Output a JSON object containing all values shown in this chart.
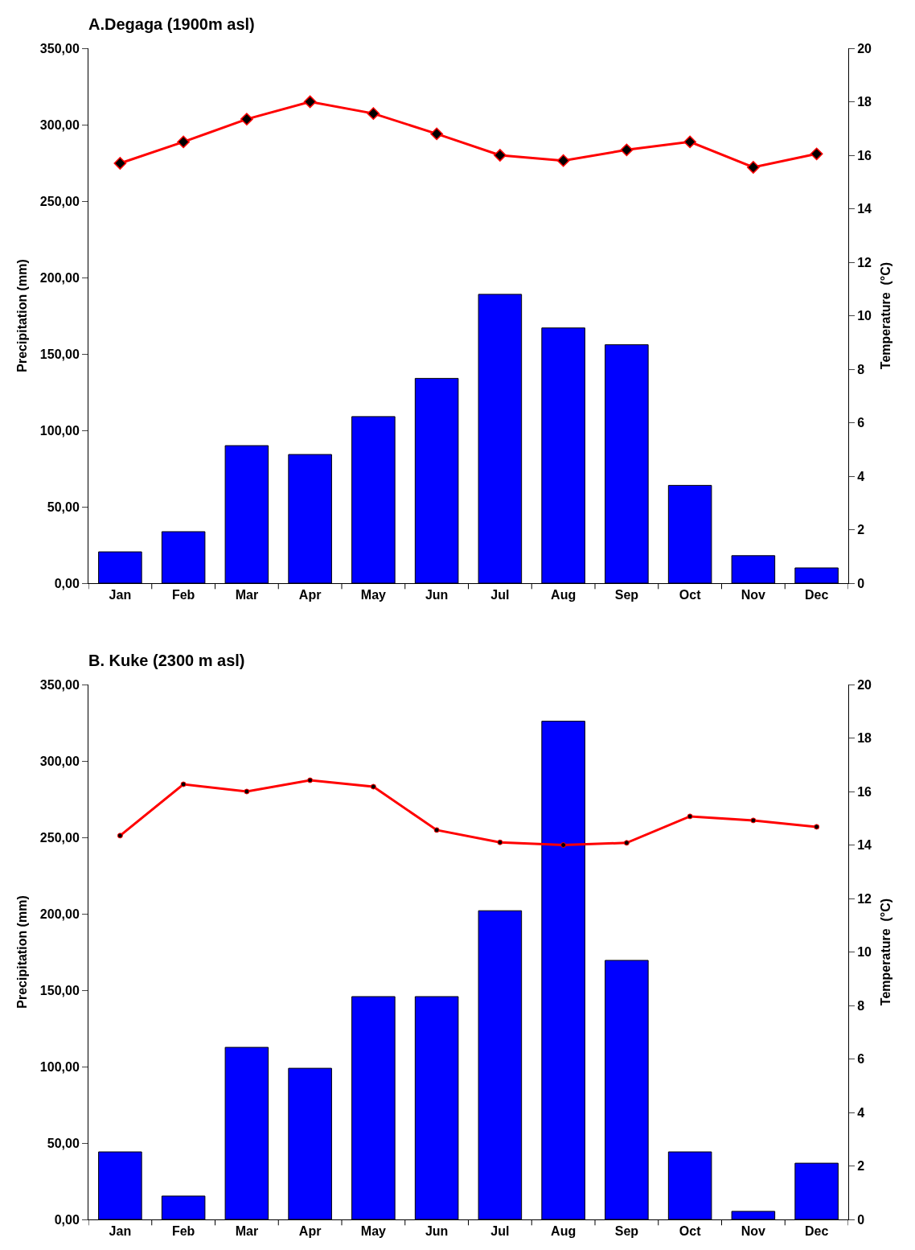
{
  "chart_data": [
    {
      "type": "bar",
      "title": "A.Degaga (1900m asl)",
      "ylabel": "Precipitation (mm)",
      "y2label": "Temperature  (°C)",
      "categories": [
        "Jan",
        "Feb",
        "Mar",
        "Apr",
        "May",
        "Jun",
        "Jul",
        "Aug",
        "Sep",
        "Oct",
        "Nov",
        "Dec"
      ],
      "series": [
        {
          "color": "#0000ff",
          "values": [
            20.5,
            33.7,
            90,
            84.2,
            109,
            134,
            189,
            167,
            156,
            64,
            18,
            10
          ]
        },
        {
          "type": "line",
          "axis": "y2",
          "color": "#ff0000",
          "marker": "diamond",
          "values": [
            15.7,
            16.5,
            17.35,
            18.0,
            17.56,
            16.8,
            16.0,
            15.8,
            16.2,
            16.5,
            15.55,
            16.05
          ]
        }
      ],
      "ylim": [
        0,
        350
      ],
      "yticks": [
        {
          "value": 0,
          "label": "0,00"
        },
        {
          "value": 50,
          "label": "50,00"
        },
        {
          "value": 100,
          "label": "100,00"
        },
        {
          "value": 150,
          "label": "150,00"
        },
        {
          "value": 200,
          "label": "200,00"
        },
        {
          "value": 250,
          "label": "250,00"
        },
        {
          "value": 300,
          "label": "300,00"
        },
        {
          "value": 350,
          "label": "350,00"
        }
      ],
      "y2lim": [
        0,
        20
      ],
      "y2ticks": [
        0,
        2,
        4,
        6,
        8,
        10,
        12,
        14,
        16,
        18,
        20
      ],
      "grid": false,
      "legend": false
    },
    {
      "type": "bar",
      "title": "B. Kuke (2300 m asl)",
      "ylabel": "Precipitation (mm)",
      "y2label": "Temperature  (°C)",
      "categories": [
        "Jan",
        "Feb",
        "Mar",
        "Apr",
        "May",
        "Jun",
        "Jul",
        "Aug",
        "Sep",
        "Oct",
        "Nov",
        "Dec"
      ],
      "series": [
        {
          "color": "#0000ff",
          "values": [
            44.2,
            15.3,
            112.6,
            98.9,
            145.8,
            145.8,
            202,
            326,
            169.5,
            44.2,
            5.3,
            36.8
          ]
        },
        {
          "type": "line",
          "axis": "y2",
          "color": "#ff0000",
          "marker": "circle",
          "values": [
            14.35,
            16.27,
            16.0,
            16.42,
            16.18,
            14.56,
            14.1,
            14.0,
            14.08,
            15.07,
            14.92,
            14.68
          ]
        }
      ],
      "ylim": [
        0,
        350
      ],
      "yticks": [
        {
          "value": 0,
          "label": "0,00"
        },
        {
          "value": 50,
          "label": "50,00"
        },
        {
          "value": 100,
          "label": "100,00"
        },
        {
          "value": 150,
          "label": "150,00"
        },
        {
          "value": 200,
          "label": "200,00"
        },
        {
          "value": 250,
          "label": "250,00"
        },
        {
          "value": 300,
          "label": "300,00"
        },
        {
          "value": 350,
          "label": "350,00"
        }
      ],
      "y2lim": [
        0,
        20
      ],
      "y2ticks": [
        0,
        2,
        4,
        6,
        8,
        10,
        12,
        14,
        16,
        18,
        20
      ],
      "grid": false,
      "legend": false
    }
  ]
}
